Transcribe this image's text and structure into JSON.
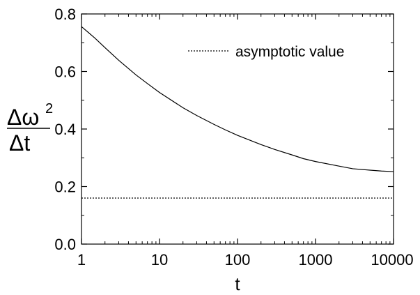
{
  "chart_data": {
    "type": "line",
    "x_scale": "log",
    "xlabel": "t",
    "ylabel": {
      "numerator_delta": "Δ",
      "numerator_var": "ω",
      "numerator_exp": "2",
      "denominator": "Δt"
    },
    "xlim": [
      1,
      10000
    ],
    "ylim": [
      0.0,
      0.8
    ],
    "x_ticks": [
      1,
      10,
      100,
      1000,
      10000
    ],
    "x_tick_labels": [
      "1",
      "10",
      "100",
      "1000",
      "10000"
    ],
    "y_ticks": [
      0.0,
      0.2,
      0.4,
      0.6,
      0.8
    ],
    "y_tick_labels": [
      "0.0",
      "0.2",
      "0.4",
      "0.6",
      "0.8"
    ],
    "grid": false,
    "legend_position": "top-right",
    "series": [
      {
        "style": "solid",
        "color": "#000000",
        "x": [
          1,
          1.5,
          2,
          3,
          5,
          7,
          10,
          20,
          30,
          50,
          70,
          100,
          200,
          300,
          500,
          700,
          1000,
          2000,
          3000,
          5000,
          7000,
          10000
        ],
        "y": [
          0.756,
          0.715,
          0.683,
          0.639,
          0.588,
          0.558,
          0.527,
          0.474,
          0.447,
          0.416,
          0.397,
          0.378,
          0.346,
          0.329,
          0.31,
          0.297,
          0.287,
          0.271,
          0.262,
          0.257,
          0.254,
          0.252
        ]
      },
      {
        "name": "asymptotic value",
        "style": "dotted",
        "color": "#000000",
        "x": [
          1,
          10000
        ],
        "y": [
          0.16,
          0.16
        ]
      }
    ]
  }
}
